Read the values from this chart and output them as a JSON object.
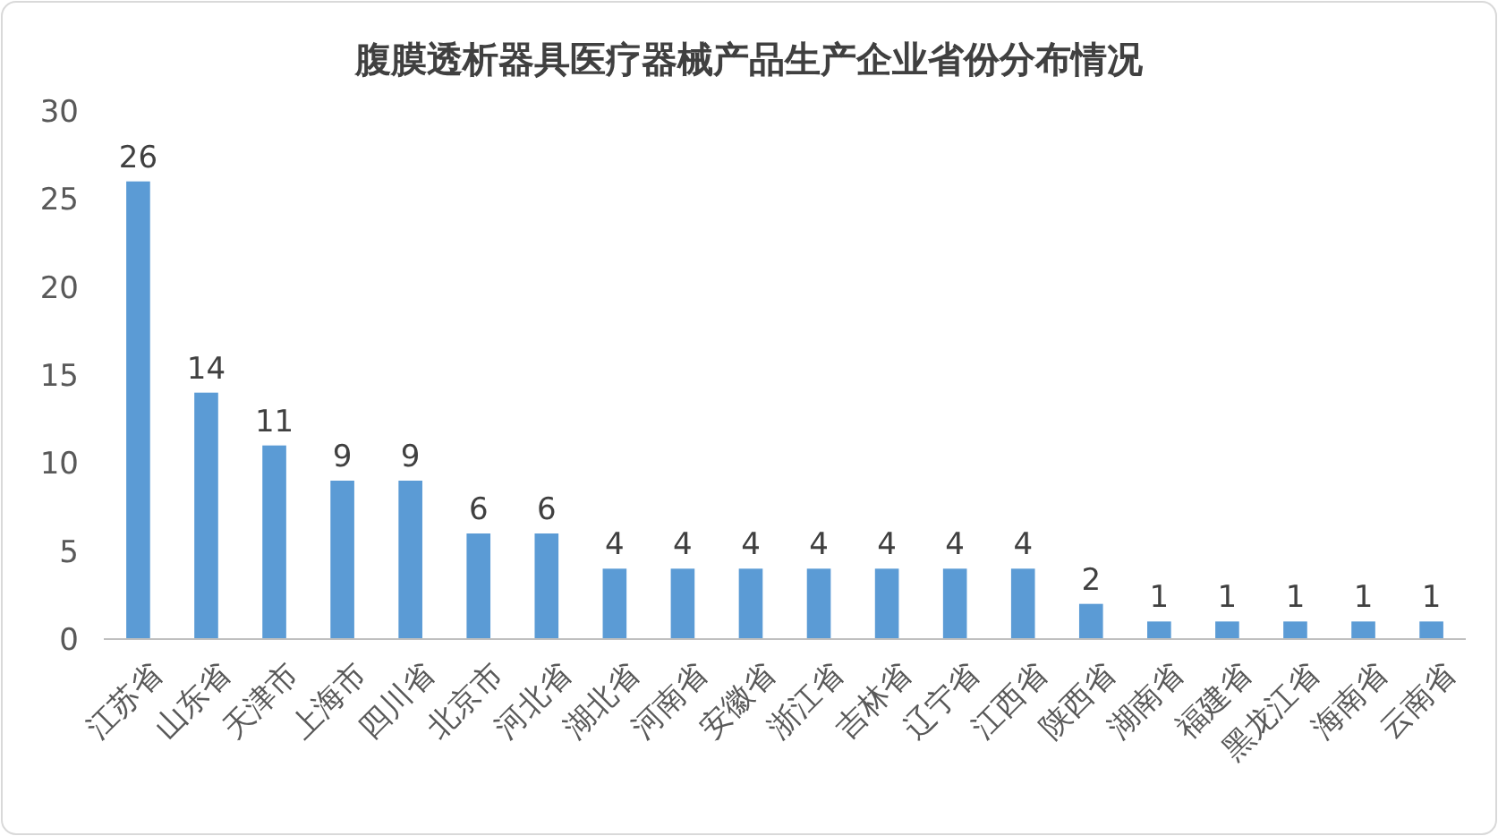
{
  "chart_data": {
    "type": "bar",
    "title": "腹膜透析器具医疗器械产品生产企业省份分布情况",
    "categories": [
      "江苏省",
      "山东省",
      "天津市",
      "上海市",
      "四川省",
      "北京市",
      "河北省",
      "湖北省",
      "河南省",
      "安徽省",
      "浙江省",
      "吉林省",
      "辽宁省",
      "江西省",
      "陕西省",
      "湖南省",
      "福建省",
      "黑龙江省",
      "海南省",
      "云南省"
    ],
    "values": [
      26,
      14,
      11,
      9,
      9,
      6,
      6,
      4,
      4,
      4,
      4,
      4,
      4,
      4,
      2,
      1,
      1,
      1,
      1,
      1
    ],
    "color": "#5b9bd5",
    "ylim": [
      0,
      30
    ],
    "yticks": [
      0,
      5,
      10,
      15,
      20,
      25,
      30
    ],
    "grid": false,
    "data_labels": true
  }
}
